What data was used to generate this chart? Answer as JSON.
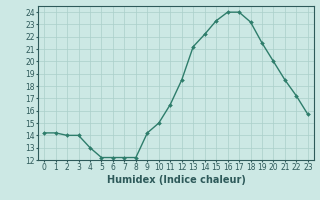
{
  "xlabel": "Humidex (Indice chaleur)",
  "x": [
    0,
    1,
    2,
    3,
    4,
    5,
    6,
    7,
    8,
    9,
    10,
    11,
    12,
    13,
    14,
    15,
    16,
    17,
    18,
    19,
    20,
    21,
    22,
    23
  ],
  "y": [
    14.2,
    14.2,
    14.0,
    14.0,
    13.0,
    12.2,
    12.2,
    12.2,
    12.2,
    14.2,
    15.0,
    16.5,
    18.5,
    21.2,
    22.2,
    23.3,
    24.0,
    24.0,
    23.2,
    21.5,
    20.0,
    18.5,
    17.2,
    15.7
  ],
  "line_color": "#2e7d6b",
  "marker": "D",
  "marker_size": 2,
  "line_width": 1.0,
  "bg_color": "#cce8e4",
  "grid_color": "#aacfca",
  "tick_color": "#2e5a5a",
  "axis_color": "#2e5a5a",
  "xlim": [
    -0.5,
    23.5
  ],
  "ylim": [
    12,
    24.5
  ],
  "yticks": [
    12,
    13,
    14,
    15,
    16,
    17,
    18,
    19,
    20,
    21,
    22,
    23,
    24
  ],
  "xticks": [
    0,
    1,
    2,
    3,
    4,
    5,
    6,
    7,
    8,
    9,
    10,
    11,
    12,
    13,
    14,
    15,
    16,
    17,
    18,
    19,
    20,
    21,
    22,
    23
  ],
  "xtick_labels": [
    "0",
    "1",
    "2",
    "3",
    "4",
    "5",
    "6",
    "7",
    "8",
    "9",
    "10",
    "11",
    "12",
    "13",
    "14",
    "15",
    "16",
    "17",
    "18",
    "19",
    "20",
    "21",
    "22",
    "23"
  ],
  "xlabel_fontsize": 7,
  "tick_fontsize": 5.5
}
